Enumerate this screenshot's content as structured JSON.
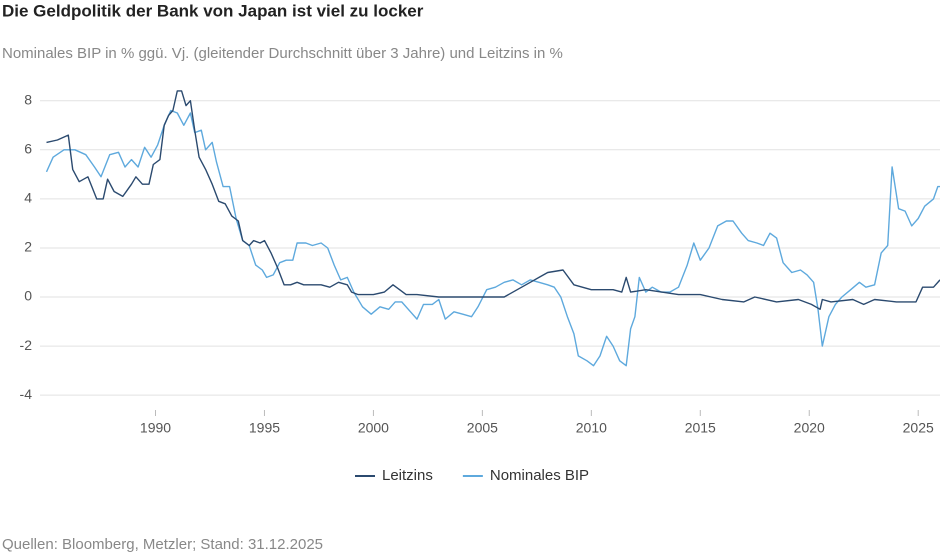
{
  "chart_data": {
    "type": "line",
    "title": "Die Geldpolitik der Bank von Japan ist viel zu locker",
    "subtitle": "Nominales BIP in % ggü. Vj. (gleitender Durchschnitt über 3 Jahre) und Leitzins in %",
    "source": "Quellen: Bloomberg, Metzler; Stand: 31.12.2025",
    "xlim": [
      1984.7,
      2026
    ],
    "xticks": [
      1990,
      1995,
      2000,
      2005,
      2010,
      2015,
      2020,
      2025
    ],
    "ylim": [
      -4.4,
      8.6
    ],
    "yticks": [
      -4,
      -2,
      0,
      2,
      4,
      6,
      8
    ],
    "grid": true,
    "legend": "bottom",
    "series": [
      {
        "name": "Leitzins",
        "color": "#2b4a6f",
        "x": [
          1985.0,
          1985.5,
          1986.0,
          1986.2,
          1986.5,
          1986.9,
          1987.3,
          1987.6,
          1987.8,
          1988.1,
          1988.5,
          1988.9,
          1989.1,
          1989.4,
          1989.7,
          1989.9,
          1990.2,
          1990.4,
          1990.6,
          1990.8,
          1991.0,
          1991.2,
          1991.4,
          1991.6,
          1991.8,
          1992.0,
          1992.3,
          1992.6,
          1992.9,
          1993.2,
          1993.5,
          1993.8,
          1994.0,
          1994.3,
          1994.5,
          1994.8,
          1995.0,
          1995.3,
          1995.6,
          1995.9,
          1996.2,
          1996.5,
          1996.8,
          1997.2,
          1997.6,
          1998.0,
          1998.4,
          1998.8,
          1999.0,
          1999.3,
          1999.7,
          2000.0,
          2000.5,
          2000.9,
          2001.2,
          2001.5,
          2002.0,
          2003.0,
          2004.0,
          2005.0,
          2006.0,
          2006.6,
          2007.2,
          2007.6,
          2008.0,
          2008.7,
          2009.2,
          2010.0,
          2011.0,
          2011.4,
          2011.6,
          2011.8,
          2012.5,
          2014.0,
          2015.0,
          2016.0,
          2017.0,
          2017.5,
          2018.5,
          2019.5,
          2020.1,
          2020.5,
          2020.6,
          2021.0,
          2022.0,
          2022.5,
          2023.0,
          2024.0,
          2024.9,
          2025.2,
          2025.7,
          2026.0
        ],
        "values": [
          6.3,
          6.4,
          6.6,
          5.2,
          4.7,
          4.9,
          4.0,
          4.0,
          4.8,
          4.3,
          4.1,
          4.6,
          4.9,
          4.6,
          4.6,
          5.4,
          5.6,
          7.0,
          7.4,
          7.6,
          8.4,
          8.4,
          7.8,
          8.0,
          6.8,
          5.7,
          5.2,
          4.6,
          3.9,
          3.8,
          3.3,
          3.1,
          2.3,
          2.1,
          2.3,
          2.2,
          2.3,
          1.8,
          1.2,
          0.5,
          0.5,
          0.6,
          0.5,
          0.5,
          0.5,
          0.4,
          0.6,
          0.5,
          0.2,
          0.1,
          0.1,
          0.1,
          0.2,
          0.5,
          0.3,
          0.1,
          0.1,
          0.0,
          0.0,
          0.0,
          0.0,
          0.3,
          0.6,
          0.8,
          1.0,
          1.1,
          0.5,
          0.3,
          0.3,
          0.2,
          0.8,
          0.2,
          0.3,
          0.1,
          0.1,
          -0.1,
          -0.2,
          0.0,
          -0.2,
          -0.1,
          -0.3,
          -0.5,
          -0.1,
          -0.2,
          -0.1,
          -0.3,
          -0.1,
          -0.2,
          -0.2,
          0.4,
          0.4,
          0.7
        ]
      },
      {
        "name": "Nominales BIP",
        "color": "#5ea9dd",
        "x": [
          1985.0,
          1985.3,
          1985.8,
          1986.3,
          1986.8,
          1987.2,
          1987.5,
          1987.9,
          1988.3,
          1988.6,
          1988.9,
          1989.2,
          1989.5,
          1989.8,
          1990.1,
          1990.4,
          1990.7,
          1991.0,
          1991.3,
          1991.6,
          1991.8,
          1992.1,
          1992.3,
          1992.6,
          1992.8,
          1993.1,
          1993.4,
          1993.7,
          1994.0,
          1994.3,
          1994.6,
          1994.9,
          1995.1,
          1995.4,
          1995.7,
          1996.0,
          1996.3,
          1996.5,
          1996.9,
          1997.2,
          1997.6,
          1997.9,
          1998.2,
          1998.5,
          1998.8,
          1999.1,
          1999.5,
          1999.9,
          2000.3,
          2000.7,
          2001.0,
          2001.3,
          2001.7,
          2002.0,
          2002.3,
          2002.7,
          2003.0,
          2003.3,
          2003.7,
          2004.1,
          2004.5,
          2004.8,
          2005.2,
          2005.6,
          2006.0,
          2006.4,
          2006.8,
          2007.2,
          2007.6,
          2008.0,
          2008.3,
          2008.6,
          2008.9,
          2009.2,
          2009.4,
          2009.8,
          2010.1,
          2010.4,
          2010.7,
          2011.0,
          2011.3,
          2011.6,
          2011.8,
          2012.0,
          2012.2,
          2012.5,
          2012.8,
          2013.2,
          2013.6,
          2014.0,
          2014.4,
          2014.7,
          2015.0,
          2015.4,
          2015.8,
          2016.2,
          2016.5,
          2016.9,
          2017.2,
          2017.6,
          2017.9,
          2018.2,
          2018.5,
          2018.8,
          2019.2,
          2019.6,
          2019.9,
          2020.2,
          2020.4,
          2020.6,
          2020.9,
          2021.2,
          2021.5,
          2021.9,
          2022.3,
          2022.6,
          2023.0,
          2023.3,
          2023.6,
          2023.8,
          2024.1,
          2024.4,
          2024.7,
          2025.0,
          2025.3,
          2025.7,
          2025.9,
          2026.0
        ],
        "values": [
          5.1,
          5.7,
          6.0,
          6.0,
          5.8,
          5.3,
          4.9,
          5.8,
          5.9,
          5.3,
          5.6,
          5.3,
          6.1,
          5.7,
          6.2,
          7.0,
          7.6,
          7.5,
          7.0,
          7.5,
          6.7,
          6.8,
          6.0,
          6.3,
          5.5,
          4.5,
          4.5,
          3.2,
          2.3,
          2.1,
          1.3,
          1.1,
          0.8,
          0.9,
          1.4,
          1.5,
          1.5,
          2.2,
          2.2,
          2.1,
          2.2,
          2.0,
          1.3,
          0.7,
          0.8,
          0.2,
          -0.4,
          -0.7,
          -0.4,
          -0.5,
          -0.2,
          -0.2,
          -0.6,
          -0.9,
          -0.3,
          -0.3,
          -0.1,
          -0.9,
          -0.6,
          -0.7,
          -0.8,
          -0.4,
          0.3,
          0.4,
          0.6,
          0.7,
          0.5,
          0.7,
          0.6,
          0.5,
          0.4,
          0.0,
          -0.8,
          -1.5,
          -2.4,
          -2.6,
          -2.8,
          -2.4,
          -1.6,
          -2.0,
          -2.6,
          -2.8,
          -1.3,
          -0.8,
          0.8,
          0.2,
          0.4,
          0.2,
          0.2,
          0.4,
          1.3,
          2.2,
          1.5,
          2.0,
          2.9,
          3.1,
          3.1,
          2.6,
          2.3,
          2.2,
          2.1,
          2.6,
          2.4,
          1.4,
          1.0,
          1.1,
          0.9,
          0.6,
          -0.5,
          -2.0,
          -0.8,
          -0.3,
          0.0,
          0.3,
          0.6,
          0.4,
          0.5,
          1.8,
          2.1,
          5.3,
          3.6,
          3.5,
          2.9,
          3.2,
          3.7,
          4.0,
          4.5,
          4.5
        ]
      }
    ]
  }
}
